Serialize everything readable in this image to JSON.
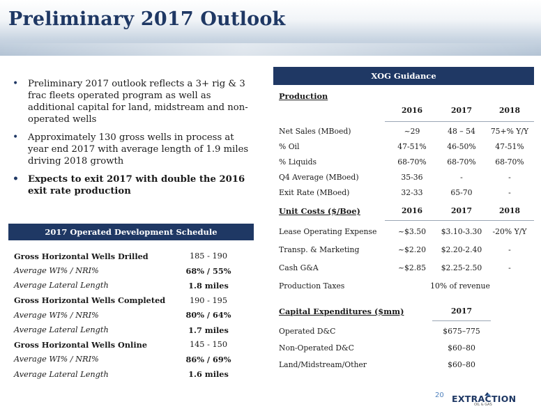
{
  "title": "Preliminary 2017 Outlook",
  "bullets": [
    {
      "text": "Preliminary 2017 outlook reflects a 3+ rig & 3 frac fleets operated program as well as additional capital for land, midstream and non-operated wells",
      "bold": false
    },
    {
      "text": "Approximately 130 gross wells in process at year end 2017 with average length of 1.9 miles driving 2018 growth",
      "bold": false
    },
    {
      "text": "Expects to exit 2017 with double the 2016 exit rate production",
      "bold": true
    }
  ],
  "bullet_glyph": "•",
  "schedule": {
    "heading": "2017 Operated Development Schedule",
    "rows": [
      {
        "label": "Gross Horizontal Wells Drilled",
        "value": "185 - 190"
      },
      {
        "label": "Average WI% / NRI%",
        "value": "68%  /  55%"
      },
      {
        "label": "Average Lateral Length",
        "value": "1.8 miles"
      },
      {
        "label": "Gross Horizontal Wells Completed",
        "value": "190 - 195"
      },
      {
        "label": "Average WI% / NRI%",
        "value": "80%  /  64%"
      },
      {
        "label": "Average Lateral Length",
        "value": "1.7 miles"
      },
      {
        "label": "Gross Horizontal Wells Online",
        "value": "145 - 150"
      },
      {
        "label": "Average WI% / NRI%",
        "value": "86%  /  69%"
      },
      {
        "label": "Average Lateral Length",
        "value": "1.6 miles"
      }
    ]
  },
  "guidance": {
    "heading": "XOG Guidance",
    "production": {
      "title": "Production",
      "columns": [
        "2016",
        "2017",
        "2018"
      ],
      "rows": [
        {
          "label": "Net Sales (MBoed)",
          "values": [
            "~29",
            "48 – 54",
            "75+% Y/Y"
          ]
        },
        {
          "label": "% Oil",
          "values": [
            "47-51%",
            "46-50%",
            "47-51%"
          ]
        },
        {
          "label": "% Liquids",
          "values": [
            "68-70%",
            "68-70%",
            "68-70%"
          ]
        },
        {
          "label": "Q4 Average (MBoed)",
          "values": [
            "35-36",
            "-",
            "-"
          ]
        },
        {
          "label": "Exit Rate  (MBoed)",
          "values": [
            "32-33",
            "65-70",
            "-"
          ]
        }
      ]
    },
    "unit_costs": {
      "title": "Unit Costs ($/Boe)",
      "columns": [
        "2016",
        "2017",
        "2018"
      ],
      "rows": [
        {
          "label": "Lease Operating Expense",
          "values": [
            "~$3.50",
            "$3.10-3.30",
            "-20% Y/Y"
          ]
        },
        {
          "label": "Transp. & Marketing",
          "values": [
            "~$2.20",
            "$2.20-2.40",
            "-"
          ]
        },
        {
          "label": "Cash G&A",
          "values": [
            "~$2.85",
            "$2.25-2.50",
            "-"
          ]
        }
      ],
      "production_taxes": {
        "label": "Production Taxes",
        "value": "10% of revenue"
      }
    },
    "capex": {
      "title": "Capital Expenditures ($mm)",
      "column": "2017",
      "rows": [
        {
          "label": "Operated D&C",
          "value": "$675–775"
        },
        {
          "label": "Non-Operated D&C",
          "value": "$60–80"
        },
        {
          "label": "Land/Midstream/Other",
          "value": "$60–80"
        }
      ]
    }
  },
  "page_number": "20",
  "logo": {
    "text": "EXTRACTION",
    "sub": "OIL & GAS",
    "color": "#1f3864"
  },
  "colors": {
    "header_bar": "#1f3864",
    "title": "#1f3864",
    "page_number": "#4f81bd"
  }
}
